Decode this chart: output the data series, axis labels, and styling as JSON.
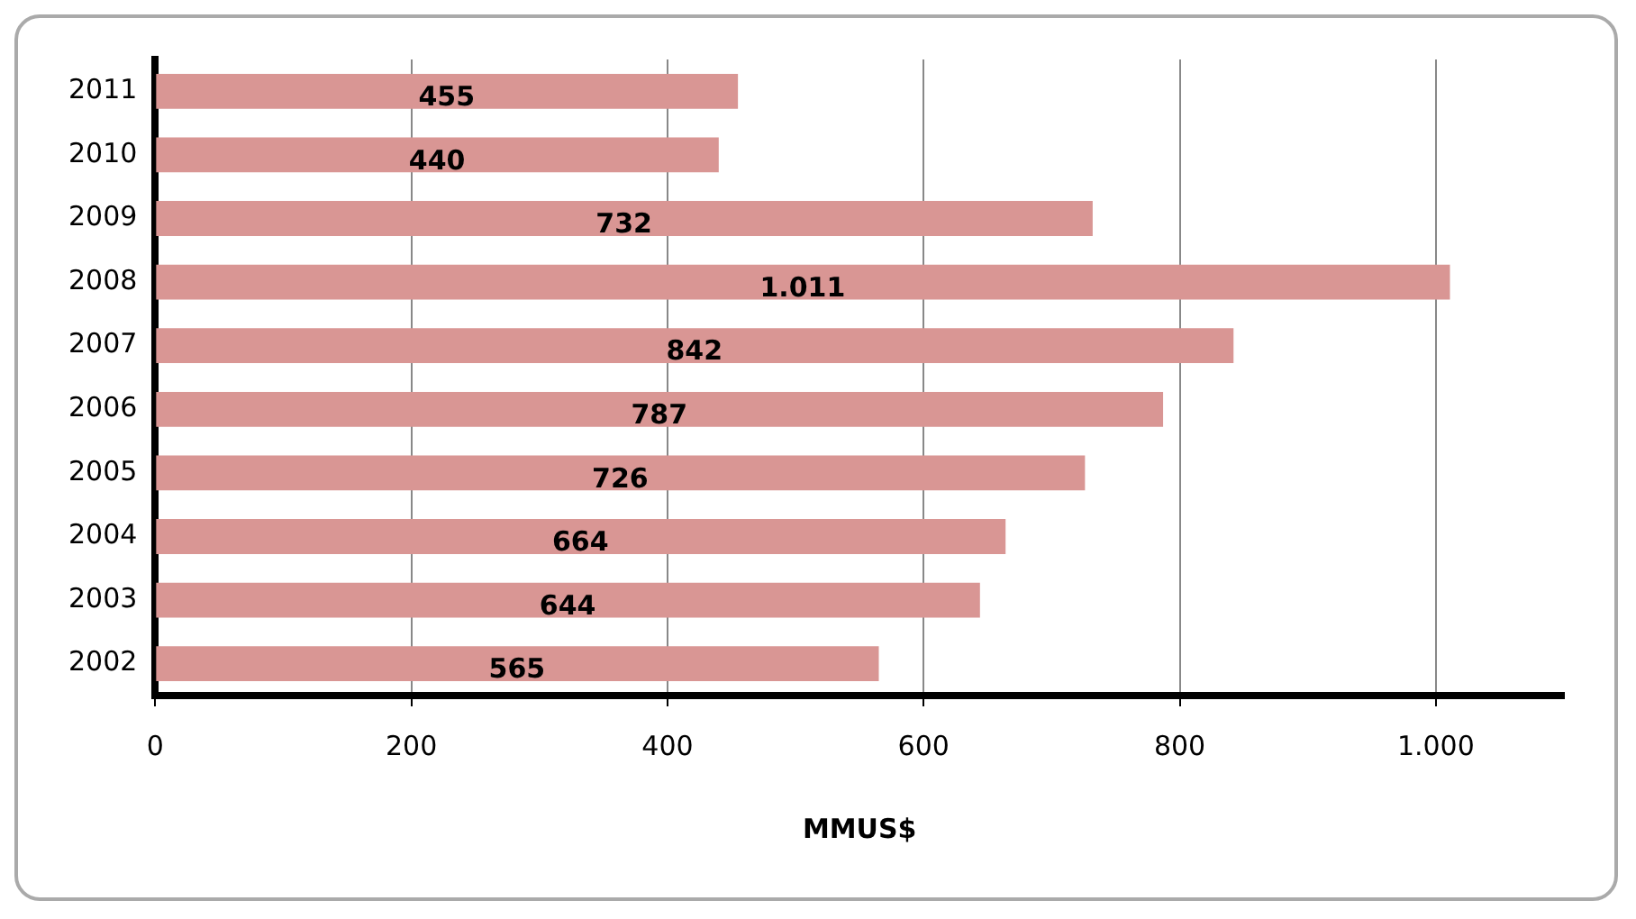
{
  "chart_data": {
    "type": "bar",
    "orientation": "horizontal",
    "xlabel": "MMUS$",
    "categories": [
      "2011",
      "2010",
      "2009",
      "2008",
      "2007",
      "2006",
      "2005",
      "2004",
      "2003",
      "2002"
    ],
    "values": [
      455,
      440,
      732,
      1011,
      842,
      787,
      726,
      664,
      644,
      565
    ],
    "value_labels": [
      "455",
      "440",
      "732",
      "1.011",
      "842",
      "787",
      "726",
      "664",
      "644",
      "565"
    ],
    "color": "#d99694",
    "xlim": [
      0,
      1100
    ],
    "xticks": [
      0,
      200,
      400,
      600,
      800,
      {
        "value": 1000,
        "label": "1.000"
      }
    ],
    "grid": "x",
    "legend": false
  }
}
